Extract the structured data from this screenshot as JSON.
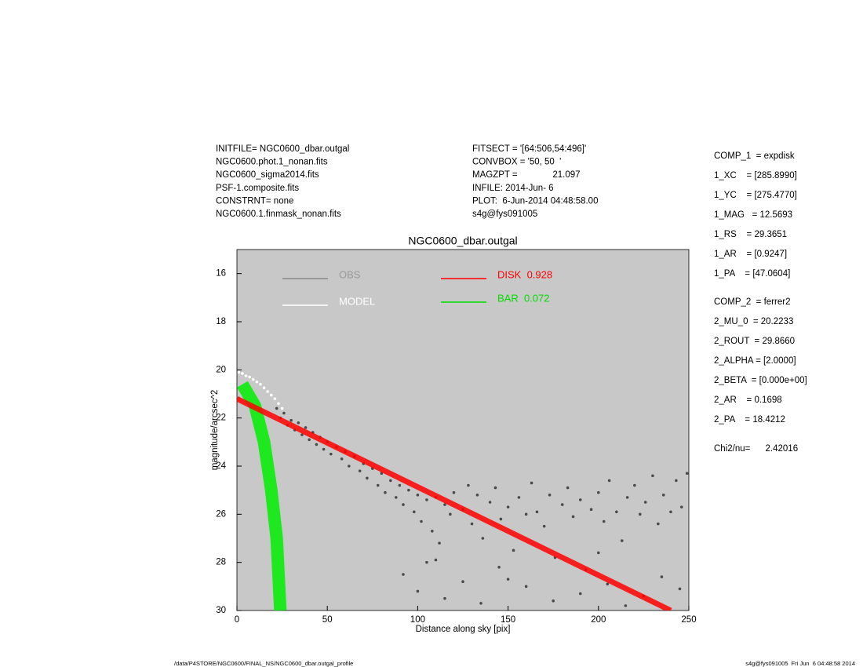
{
  "chart_data": {
    "type": "scatter",
    "title": "NGC0600_dbar.outgal",
    "xlabel": "Distance along sky [pix]",
    "ylabel": "magnitude/arcsec^2",
    "header_left": [
      "INITFILE= NGC0600_dbar.outgal",
      "NGC0600.phot.1_nonan.fits",
      "NGC0600_sigma2014.fits",
      "PSF-1.composite.fits",
      "CONSTRNT= none",
      "NGC0600.1.finmask_nonan.fits"
    ],
    "header_mid": [
      "FITSECT = '[64:506,54:496]'",
      "CONVBOX = '50, 50  '",
      "MAGZPT =              21.097",
      "INFILE: 2014-Jun- 6",
      "PLOT:  6-Jun-2014 04:48:58.00",
      "s4g@fys091005"
    ],
    "params": [
      "COMP_1  = expdisk",
      "1_XC    = [285.8990]",
      "1_YC    = [275.4770]",
      "1_MAG   = 12.5693",
      "1_RS    = 29.3651",
      "1_AR    = [0.9247]",
      "1_PA    = [47.0604]",
      "COMP_2  = ferrer2",
      "2_MU_0  = 20.2233",
      "2_ROUT  = 29.8660",
      "2_ALPHA = [2.0000]",
      "2_BETA  = [0.000e+00]",
      "2_AR    = 0.1698",
      "2_PA    = 18.4212",
      "Chi2/nu=      2.42016"
    ],
    "footer_left": "/data/P4STORE/NGC0600/FINAL_NS/NGC0600_dbar.outgal_profile",
    "footer_right": "s4g@fys091005  Fri Jun  6 04:48:58 2014",
    "xlim": [
      0,
      250
    ],
    "xticks": [
      0,
      50,
      100,
      150,
      200,
      250
    ],
    "ylim": [
      30,
      15
    ],
    "yticks": [
      16,
      18,
      20,
      22,
      24,
      26,
      28,
      30
    ],
    "background": "#c8c8c8",
    "series": [
      {
        "name": "OBS",
        "color": "#4a4a4a",
        "mode": "markers",
        "x": [
          22,
          24,
          26,
          28,
          30,
          32,
          34,
          36,
          38,
          40,
          42,
          44,
          46,
          48,
          50,
          52,
          55,
          58,
          60,
          62,
          65,
          68,
          70,
          72,
          75,
          78,
          80,
          82,
          85,
          88,
          90,
          92,
          95,
          98,
          100,
          102,
          105,
          108,
          110,
          112,
          115,
          118,
          120,
          125,
          128,
          130,
          133,
          136,
          140,
          143,
          146,
          150,
          153,
          156,
          160,
          163,
          166,
          170,
          173,
          176,
          180,
          183,
          186,
          190,
          193,
          196,
          200,
          203,
          206,
          210,
          213,
          216,
          220,
          223,
          226,
          230,
          233,
          236,
          240,
          243,
          246,
          249,
          92,
          100,
          105,
          115,
          125,
          135,
          145,
          160,
          175,
          190,
          205,
          215,
          225,
          235,
          245,
          110,
          150,
          200
        ],
        "values": [
          21.6,
          22.0,
          21.8,
          22.3,
          22.1,
          22.5,
          22.2,
          22.7,
          22.4,
          22.9,
          22.6,
          23.1,
          22.8,
          23.3,
          23.0,
          23.5,
          23.2,
          23.7,
          23.4,
          24.0,
          23.6,
          24.2,
          23.9,
          24.5,
          24.1,
          24.8,
          24.3,
          25.1,
          24.6,
          25.3,
          24.8,
          25.6,
          25.0,
          25.9,
          25.2,
          26.3,
          25.4,
          26.7,
          25.3,
          27.2,
          25.6,
          26.0,
          25.1,
          25.8,
          24.8,
          26.4,
          25.2,
          27.0,
          25.5,
          24.9,
          26.2,
          25.7,
          27.5,
          25.3,
          26.0,
          24.7,
          25.9,
          26.5,
          25.2,
          27.8,
          25.6,
          24.9,
          26.1,
          25.4,
          28.3,
          25.8,
          25.1,
          26.3,
          24.6,
          25.9,
          27.1,
          25.3,
          24.8,
          26.0,
          25.5,
          24.4,
          26.4,
          25.2,
          25.9,
          24.6,
          25.7,
          24.3,
          28.5,
          29.2,
          28.0,
          29.5,
          28.8,
          29.7,
          28.2,
          29.0,
          29.6,
          29.3,
          28.9,
          29.8,
          29.4,
          28.6,
          29.1,
          27.9,
          28.7,
          27.6
        ]
      },
      {
        "name": "MODEL",
        "color": "#ffffff",
        "mode": "markers",
        "x": [
          1,
          3,
          5,
          7,
          9,
          11,
          13,
          15,
          17,
          19,
          21,
          23,
          25
        ],
        "values": [
          20.1,
          20.15,
          20.25,
          20.3,
          20.4,
          20.5,
          20.6,
          20.75,
          20.9,
          21.05,
          21.2,
          21.4,
          21.6
        ]
      },
      {
        "name": "DISK  0.928",
        "color": "#ff0000",
        "mode": "line",
        "x": [
          0,
          240
        ],
        "values": [
          21.2,
          30
        ]
      },
      {
        "name": "BAR  0.072",
        "color": "#00ee00",
        "mode": "line",
        "x": [
          3,
          10,
          15,
          19,
          22,
          24
        ],
        "values": [
          20.6,
          21.5,
          23,
          25,
          27,
          30
        ]
      }
    ]
  }
}
